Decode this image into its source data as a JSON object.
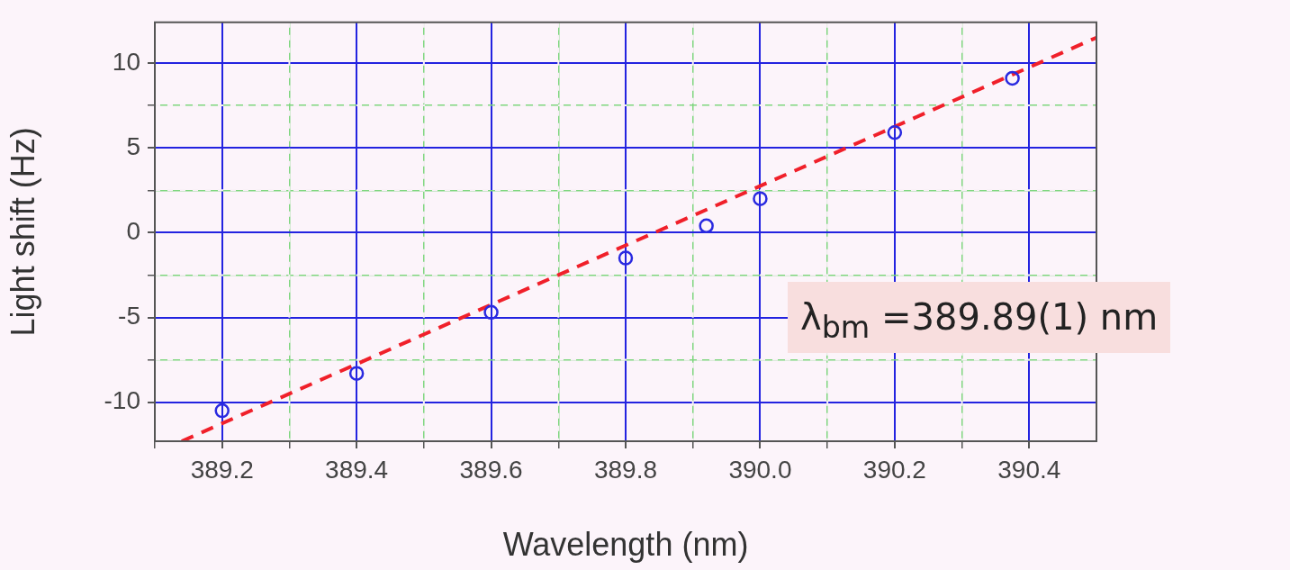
{
  "chart_data": {
    "type": "scatter",
    "xlabel": "Wavelength (nm)",
    "ylabel": "Light shift (Hz)",
    "xlim": [
      389.1,
      390.5
    ],
    "ylim": [
      -12.3,
      12.4
    ],
    "xticks": [
      {
        "value": 389.1,
        "label": null
      },
      {
        "value": 389.2,
        "label": "389.2"
      },
      {
        "value": 389.3,
        "label": null
      },
      {
        "value": 389.4,
        "label": "389.4"
      },
      {
        "value": 389.5,
        "label": null
      },
      {
        "value": 389.6,
        "label": "389.6"
      },
      {
        "value": 389.7,
        "label": null
      },
      {
        "value": 389.8,
        "label": "389.8"
      },
      {
        "value": 389.9,
        "label": null
      },
      {
        "value": 390.0,
        "label": "390.0"
      },
      {
        "value": 390.1,
        "label": null
      },
      {
        "value": 390.2,
        "label": "390.2"
      },
      {
        "value": 390.3,
        "label": null
      },
      {
        "value": 390.4,
        "label": "390.4"
      }
    ],
    "yticks": [
      -10,
      {
        "value": -7.5,
        "label": null
      },
      -5,
      {
        "value": -2.5,
        "label": null
      },
      0,
      {
        "value": 2.5,
        "label": null
      },
      5,
      {
        "value": 7.5,
        "label": null
      },
      10
    ],
    "grid": true,
    "marker": "circle",
    "series": [
      {
        "color": "#2a2ae0",
        "x": [
          389.2,
          389.4,
          389.6,
          389.8,
          389.92,
          390.0,
          390.2,
          390.375
        ],
        "values": [
          -10.5,
          -8.3,
          -4.7,
          -1.5,
          0.4,
          2.0,
          5.9,
          9.1
        ]
      },
      {
        "type": "line",
        "color": "#f0202a",
        "line_style": "dashed",
        "marker": "none",
        "x": [
          389.14,
          390.5
        ],
        "values": [
          -12.3,
          11.5
        ]
      }
    ],
    "annotations": [
      "λ$_{bm}$ =389.89(1) nm"
    ]
  }
}
